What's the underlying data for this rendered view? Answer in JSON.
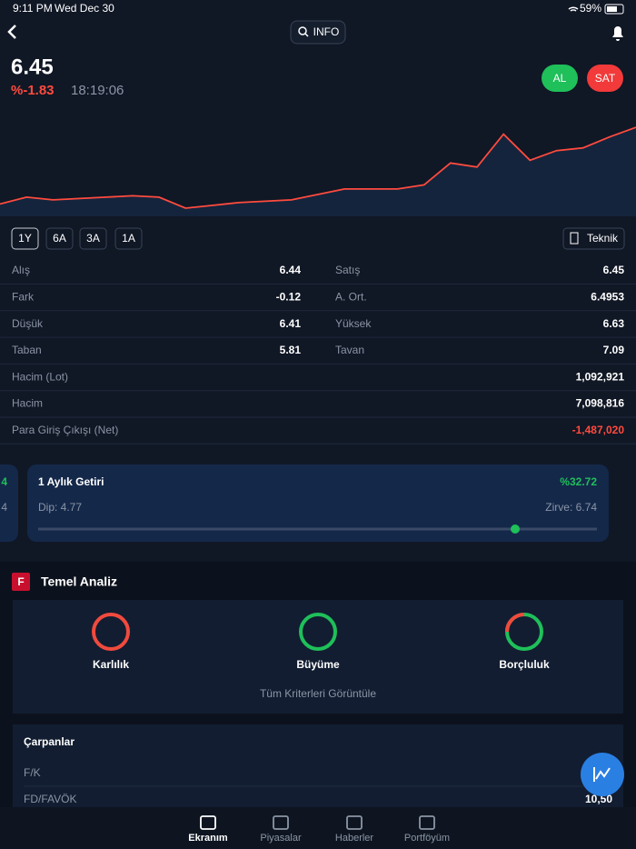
{
  "status_bar": {
    "time": "9:11 PM",
    "date": "Wed Dec 30",
    "battery": "59%"
  },
  "nav": {
    "info_button": "INFO"
  },
  "quote": {
    "price": "6.45",
    "change": "%-1.83",
    "time": "18:19:06",
    "buy_button": "AL",
    "sell_button": "SAT"
  },
  "price_chart": {
    "type": "line",
    "color": "#ff4b3e",
    "ylim": [
      5.8,
      6.65
    ],
    "values": [
      5.89,
      5.94,
      5.92,
      5.93,
      5.94,
      5.95,
      5.94,
      5.86,
      5.88,
      5.9,
      5.91,
      5.92,
      5.96,
      6.0,
      6.0,
      6.0,
      6.03,
      6.19,
      6.16,
      6.4,
      6.21,
      6.28,
      6.3,
      6.38,
      6.45
    ]
  },
  "range_buttons": [
    "1Y",
    "6A",
    "3A",
    "1A"
  ],
  "teknik_button": "Teknik",
  "stats": {
    "pairs": [
      [
        [
          "Alış",
          "6.44"
        ],
        [
          "Satış",
          "6.45"
        ]
      ],
      [
        [
          "Fark",
          "-0.12"
        ],
        [
          "A. Ort.",
          "6.4953"
        ]
      ],
      [
        [
          "Düşük",
          "6.41"
        ],
        [
          "Yüksek",
          "6.63"
        ]
      ],
      [
        [
          "Taban",
          "5.81"
        ],
        [
          "Tavan",
          "7.09"
        ]
      ]
    ],
    "rows": [
      [
        "Hacim (Lot)",
        "1,092,921"
      ],
      [
        "Hacim",
        "7,098,816"
      ],
      [
        "Para Giriş Çıkışı (Net)",
        "-1,487,020"
      ]
    ]
  },
  "return_card": {
    "side_values": [
      "4",
      "4"
    ],
    "title": "1 Aylık Getiri",
    "value": "%32.72",
    "low": "Dip: 4.77",
    "high": "Zirve: 6.74"
  },
  "fundamental": {
    "icon": "F",
    "title": "Temel Analiz",
    "criteria": [
      "Karlılık",
      "Büyüme",
      "Borçluluk"
    ],
    "view_all": "Tüm Kriterleri Görüntüle"
  },
  "multiples": {
    "title": "Çarpanlar",
    "rows": [
      {
        "label": "F/K"
      },
      {
        "label": "FD/FAVÖK",
        "value": "10,50"
      }
    ]
  },
  "tab_bar": [
    "Ekranım",
    "Piyasalar",
    "Haberler",
    "Portföyüm"
  ]
}
